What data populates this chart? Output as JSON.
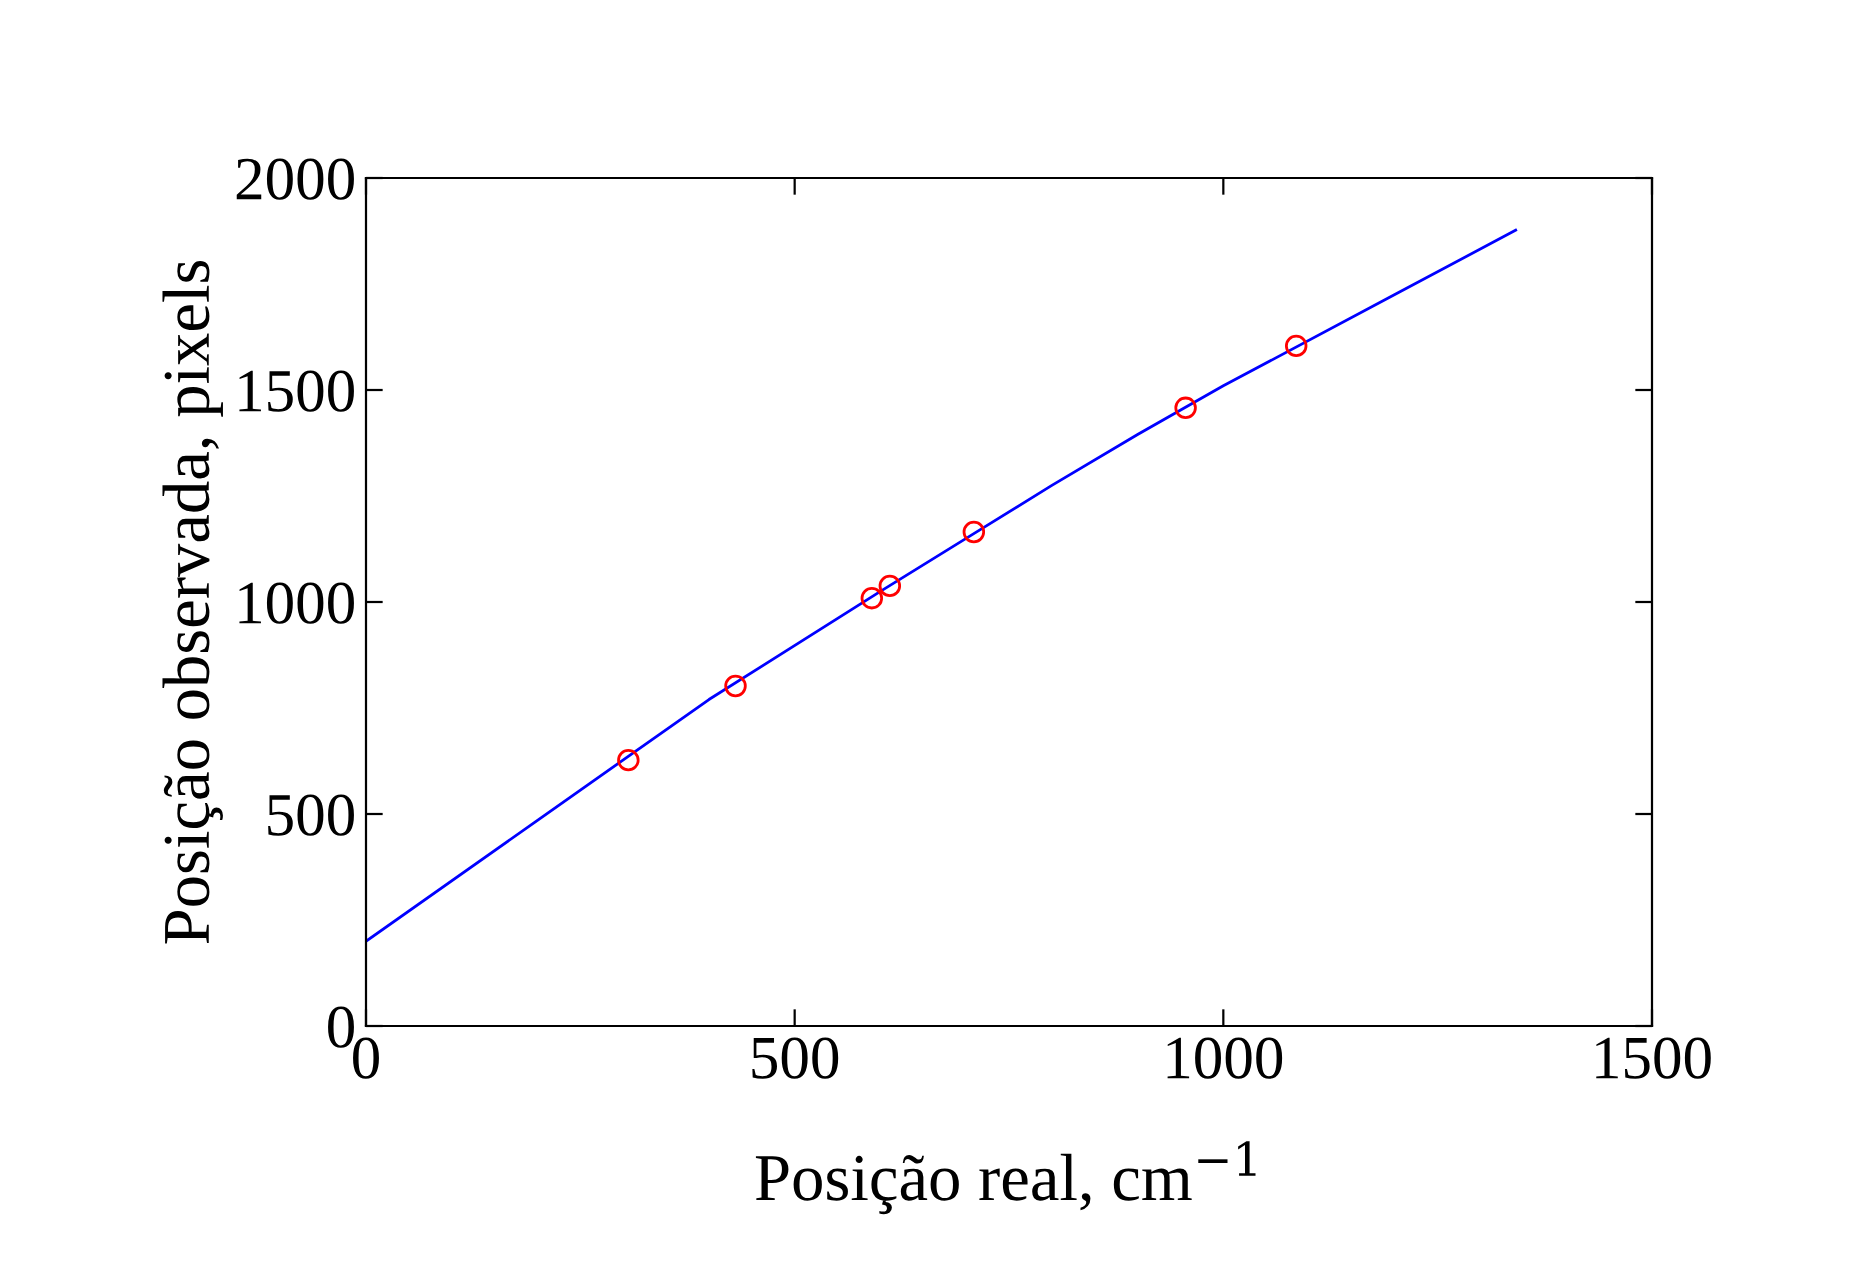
{
  "chart_data": {
    "type": "scatter",
    "xlabel": "Posição real, cm$^{−1}$",
    "ylabel": "Posição observada, pixels",
    "xlim": [
      0,
      1500
    ],
    "ylim": [
      0,
      2000
    ],
    "xticks": [
      0,
      500,
      1000,
      1500
    ],
    "yticks": [
      0,
      500,
      1000,
      1500,
      2000
    ],
    "grid": false,
    "legend": false,
    "series": [
      {
        "type": "line",
        "color": "#0000ff",
        "marker": "none",
        "line_style": "solid",
        "x": [
          0,
          200,
          400,
          600,
          700,
          800,
          900,
          1000,
          1200,
          1341
        ],
        "values": [
          200,
          485,
          770,
          1025,
          1150,
          1275,
          1395,
          1510,
          1725,
          1877
        ]
      },
      {
        "color": "#ff0000",
        "marker": "circle",
        "x": [
          306,
          431,
          590,
          611,
          709,
          956,
          1085
        ],
        "values": [
          627,
          802,
          1009,
          1038,
          1165,
          1458,
          1604
        ]
      }
    ]
  }
}
